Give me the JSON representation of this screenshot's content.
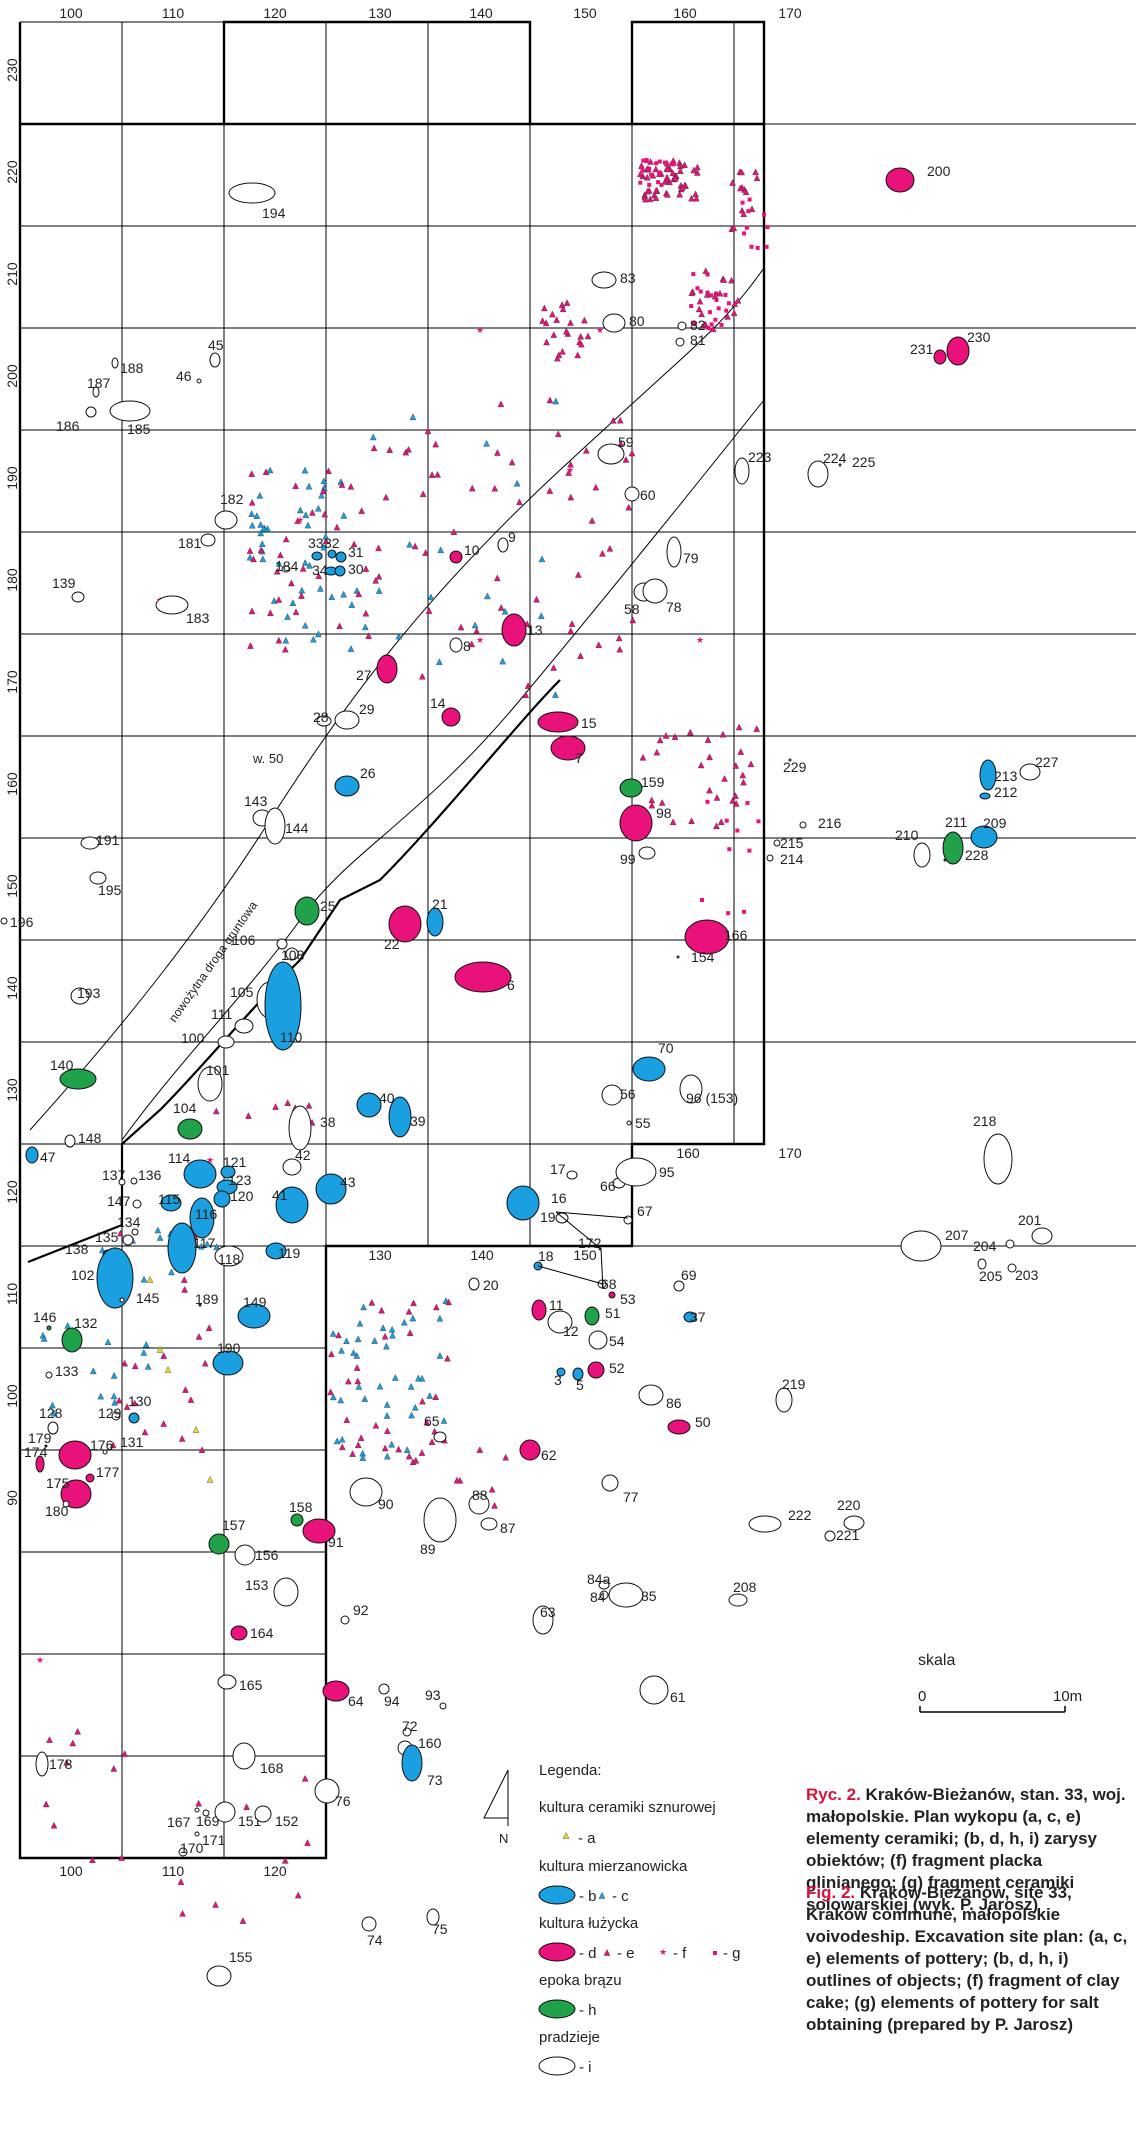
{
  "axis": {
    "top": [
      "100",
      "110",
      "120",
      "130",
      "140",
      "150",
      "160",
      "170"
    ],
    "bottom_inner": [
      "130",
      "140",
      "150"
    ],
    "bottom_outer": [
      "100",
      "110",
      "120"
    ],
    "bottom_right": [
      "160",
      "170"
    ],
    "left": [
      "230",
      "220",
      "210",
      "200",
      "190",
      "180",
      "170",
      "160",
      "150",
      "140",
      "130",
      "120",
      "110",
      "100",
      "90"
    ]
  },
  "road_label": "nowożytna droga gruntowa",
  "area_label": "w. 50",
  "scale": {
    "title": "skala",
    "start": "0",
    "end": "10m"
  },
  "north_label": "N",
  "legend": {
    "title": "Legenda:",
    "cultures": [
      "kultura ceramiki sznurowej",
      "kultura mierzanowicka",
      "kultura łużycka",
      "epoka brązu",
      "pradzieje"
    ],
    "keys": [
      "- a",
      "- b",
      "- c",
      "- d",
      "- e",
      "- f",
      "- g",
      "- h",
      "- i"
    ]
  },
  "caption_pl": {
    "tag": "Ryc. 2.",
    "text": " Kraków-Bieżanów, stan. 33, woj. małopolskie. Plan wykopu (a, c, e) elementy ceramiki; (b, d, h, i) zarysy obiektów; (f) fragment placka glinianego; (g) fragment ceramiki solowarskiej (wyk. P. Jarosz)"
  },
  "caption_en": {
    "tag": "Fig. 2.",
    "text": " Kraków-Bieżanów, site 33, Kraków commune, małopolskie voivodeship. Excavation site plan: (a, c, e) elements of pottery; (b, d, h, i) outlines of objects; (f) fragment of clay cake; (g) elements of pottery for salt obtaining (prepared by P. Jarosz)"
  },
  "colors": {
    "lusatian": "#e8127a",
    "mierzanowice": "#1a9fe0",
    "bronze_age": "#1fa24a",
    "corded_ware": "#e6dc2a",
    "prehistory": "#ffffff",
    "grid": "#000000"
  },
  "features": [
    {
      "id": "200",
      "c": "d"
    },
    {
      "id": "194",
      "c": "i"
    },
    {
      "id": "83",
      "c": "i"
    },
    {
      "id": "80",
      "c": "i"
    },
    {
      "id": "82",
      "c": "i"
    },
    {
      "id": "81",
      "c": "i"
    },
    {
      "id": "231",
      "c": "d"
    },
    {
      "id": "230",
      "c": "d"
    },
    {
      "id": "188",
      "c": "i"
    },
    {
      "id": "187",
      "c": "i"
    },
    {
      "id": "186",
      "c": "i"
    },
    {
      "id": "185",
      "c": "i"
    },
    {
      "id": "46",
      "c": "i"
    },
    {
      "id": "45",
      "c": "i"
    },
    {
      "id": "59",
      "c": "i"
    },
    {
      "id": "223",
      "c": "i"
    },
    {
      "id": "224",
      "c": "i"
    },
    {
      "id": "225",
      "c": "i"
    },
    {
      "id": "182",
      "c": "i"
    },
    {
      "id": "181",
      "c": "i"
    },
    {
      "id": "60",
      "c": "i"
    },
    {
      "id": "33",
      "c": "b"
    },
    {
      "id": "32",
      "c": "b"
    },
    {
      "id": "31",
      "c": "b"
    },
    {
      "id": "34",
      "c": "b"
    },
    {
      "id": "30",
      "c": "b"
    },
    {
      "id": "184",
      "c": "i"
    },
    {
      "id": "10",
      "c": "d"
    },
    {
      "id": "9",
      "c": "i"
    },
    {
      "id": "79",
      "c": "i"
    },
    {
      "id": "139",
      "c": "i"
    },
    {
      "id": "183",
      "c": "i"
    },
    {
      "id": "58",
      "c": "i"
    },
    {
      "id": "78",
      "c": "i"
    },
    {
      "id": "13",
      "c": "d"
    },
    {
      "id": "8",
      "c": "i"
    },
    {
      "id": "27",
      "c": "d"
    },
    {
      "id": "14",
      "c": "d"
    },
    {
      "id": "28",
      "c": "i"
    },
    {
      "id": "29",
      "c": "i"
    },
    {
      "id": "15",
      "c": "d"
    },
    {
      "id": "7",
      "c": "d"
    },
    {
      "id": "229",
      "c": "i"
    },
    {
      "id": "213",
      "c": "b"
    },
    {
      "id": "212",
      "c": "b"
    },
    {
      "id": "227",
      "c": "i"
    },
    {
      "id": "26",
      "c": "b"
    },
    {
      "id": "159",
      "c": "h"
    },
    {
      "id": "98",
      "c": "d"
    },
    {
      "id": "99",
      "c": "i"
    },
    {
      "id": "216",
      "c": "i"
    },
    {
      "id": "215",
      "c": "i"
    },
    {
      "id": "214",
      "c": "i"
    },
    {
      "id": "211",
      "c": "h"
    },
    {
      "id": "209",
      "c": "b"
    },
    {
      "id": "210",
      "c": "i"
    },
    {
      "id": "228",
      "c": "h"
    },
    {
      "id": "143",
      "c": "i"
    },
    {
      "id": "144",
      "c": "i"
    },
    {
      "id": "191",
      "c": "i"
    },
    {
      "id": "195",
      "c": "i"
    },
    {
      "id": "196",
      "c": "i"
    },
    {
      "id": "25",
      "c": "h"
    },
    {
      "id": "21",
      "c": "b"
    },
    {
      "id": "22",
      "c": "d"
    },
    {
      "id": "166",
      "c": "d"
    },
    {
      "id": "154",
      "c": "i"
    },
    {
      "id": "106",
      "c": "i"
    },
    {
      "id": "108",
      "c": "i"
    },
    {
      "id": "6",
      "c": "d"
    },
    {
      "id": "193",
      "c": "i"
    },
    {
      "id": "105",
      "c": "i"
    },
    {
      "id": "110",
      "c": "b"
    },
    {
      "id": "111",
      "c": "i"
    },
    {
      "id": "100",
      "c": "i"
    },
    {
      "id": "70",
      "c": "b"
    },
    {
      "id": "140",
      "c": "h"
    },
    {
      "id": "101",
      "c": "i"
    },
    {
      "id": "56",
      "c": "i"
    },
    {
      "id": "96 (153)",
      "c": "i"
    },
    {
      "id": "40",
      "c": "b"
    },
    {
      "id": "39",
      "c": "b"
    },
    {
      "id": "104",
      "c": "h"
    },
    {
      "id": "38",
      "c": "i"
    },
    {
      "id": "55",
      "c": "i"
    },
    {
      "id": "148",
      "c": "i"
    },
    {
      "id": "218",
      "c": "i"
    },
    {
      "id": "47",
      "c": "b"
    },
    {
      "id": "114",
      "c": "b"
    },
    {
      "id": "121",
      "c": "b"
    },
    {
      "id": "42",
      "c": "i"
    },
    {
      "id": "137",
      "c": "i"
    },
    {
      "id": "136",
      "c": "i"
    },
    {
      "id": "123",
      "c": "b"
    },
    {
      "id": "43",
      "c": "b"
    },
    {
      "id": "17",
      "c": "i"
    },
    {
      "id": "66",
      "c": "i"
    },
    {
      "id": "95",
      "c": "i"
    },
    {
      "id": "147",
      "c": "i"
    },
    {
      "id": "115",
      "c": "b"
    },
    {
      "id": "120",
      "c": "b"
    },
    {
      "id": "41",
      "c": "b"
    },
    {
      "id": "16",
      "c": "b"
    },
    {
      "id": "19",
      "c": "i"
    },
    {
      "id": "67",
      "c": "i"
    },
    {
      "id": "116",
      "c": "b"
    },
    {
      "id": "134",
      "c": "i"
    },
    {
      "id": "135",
      "c": "i"
    },
    {
      "id": "117",
      "c": "b"
    },
    {
      "id": "118",
      "c": "i"
    },
    {
      "id": "119",
      "c": "b"
    },
    {
      "id": "172",
      "c": "i"
    },
    {
      "id": "201",
      "c": "i"
    },
    {
      "id": "207",
      "c": "i"
    },
    {
      "id": "204",
      "c": "i"
    },
    {
      "id": "138",
      "c": "b"
    },
    {
      "id": "18",
      "c": "b"
    },
    {
      "id": "205",
      "c": "i"
    },
    {
      "id": "203",
      "c": "i"
    },
    {
      "id": "102",
      "c": "b"
    },
    {
      "id": "145",
      "c": "i"
    },
    {
      "id": "20",
      "c": "i"
    },
    {
      "id": "69",
      "c": "i"
    },
    {
      "id": "68",
      "c": "i"
    },
    {
      "id": "53",
      "c": "d"
    },
    {
      "id": "189",
      "c": "b"
    },
    {
      "id": "149",
      "c": "b"
    },
    {
      "id": "11",
      "c": "d"
    },
    {
      "id": "51",
      "c": "h"
    },
    {
      "id": "146",
      "c": "h"
    },
    {
      "id": "37",
      "c": "b"
    },
    {
      "id": "132",
      "c": "h"
    },
    {
      "id": "12",
      "c": "i"
    },
    {
      "id": "54",
      "c": "i"
    },
    {
      "id": "190",
      "c": "b"
    },
    {
      "id": "133",
      "c": "i"
    },
    {
      "id": "52",
      "c": "d"
    },
    {
      "id": "3",
      "c": "b"
    },
    {
      "id": "5",
      "c": "b"
    },
    {
      "id": "219",
      "c": "i"
    },
    {
      "id": "130",
      "c": "b"
    },
    {
      "id": "128",
      "c": "i"
    },
    {
      "id": "129",
      "c": "i"
    },
    {
      "id": "86",
      "c": "i"
    },
    {
      "id": "65",
      "c": "i"
    },
    {
      "id": "50",
      "c": "d"
    },
    {
      "id": "179",
      "c": "d"
    },
    {
      "id": "176",
      "c": "d"
    },
    {
      "id": "131",
      "c": "i"
    },
    {
      "id": "174",
      "c": "d"
    },
    {
      "id": "62",
      "c": "d"
    },
    {
      "id": "177",
      "c": "d"
    },
    {
      "id": "175",
      "c": "d"
    },
    {
      "id": "77",
      "c": "i"
    },
    {
      "id": "180",
      "c": "i"
    },
    {
      "id": "88",
      "c": "i"
    },
    {
      "id": "90",
      "c": "i"
    },
    {
      "id": "87",
      "c": "i"
    },
    {
      "id": "158",
      "c": "h"
    },
    {
      "id": "222",
      "c": "i"
    },
    {
      "id": "220",
      "c": "i"
    },
    {
      "id": "157",
      "c": "h"
    },
    {
      "id": "221",
      "c": "i"
    },
    {
      "id": "91",
      "c": "d"
    },
    {
      "id": "89",
      "c": "i"
    },
    {
      "id": "156",
      "c": "i"
    },
    {
      "id": "84a",
      "c": "i"
    },
    {
      "id": "84",
      "c": "i"
    },
    {
      "id": "85",
      "c": "i"
    },
    {
      "id": "208",
      "c": "i"
    },
    {
      "id": "153",
      "c": "i"
    },
    {
      "id": "92",
      "c": "i"
    },
    {
      "id": "63",
      "c": "i"
    },
    {
      "id": "164",
      "c": "d"
    },
    {
      "id": "165",
      "c": "i"
    },
    {
      "id": "61",
      "c": "i"
    },
    {
      "id": "64",
      "c": "d"
    },
    {
      "id": "94",
      "c": "i"
    },
    {
      "id": "93",
      "c": "i"
    },
    {
      "id": "72",
      "c": "i"
    },
    {
      "id": "160",
      "c": "i"
    },
    {
      "id": "73",
      "c": "b"
    },
    {
      "id": "178",
      "c": "i"
    },
    {
      "id": "168",
      "c": "i"
    },
    {
      "id": "76",
      "c": "i"
    },
    {
      "id": "167",
      "c": "i"
    },
    {
      "id": "169",
      "c": "i"
    },
    {
      "id": "151",
      "c": "i"
    },
    {
      "id": "152",
      "c": "i"
    },
    {
      "id": "171",
      "c": "i"
    },
    {
      "id": "170",
      "c": "i"
    },
    {
      "id": "74",
      "c": "i"
    },
    {
      "id": "75",
      "c": "i"
    },
    {
      "id": "155",
      "c": "i"
    }
  ]
}
